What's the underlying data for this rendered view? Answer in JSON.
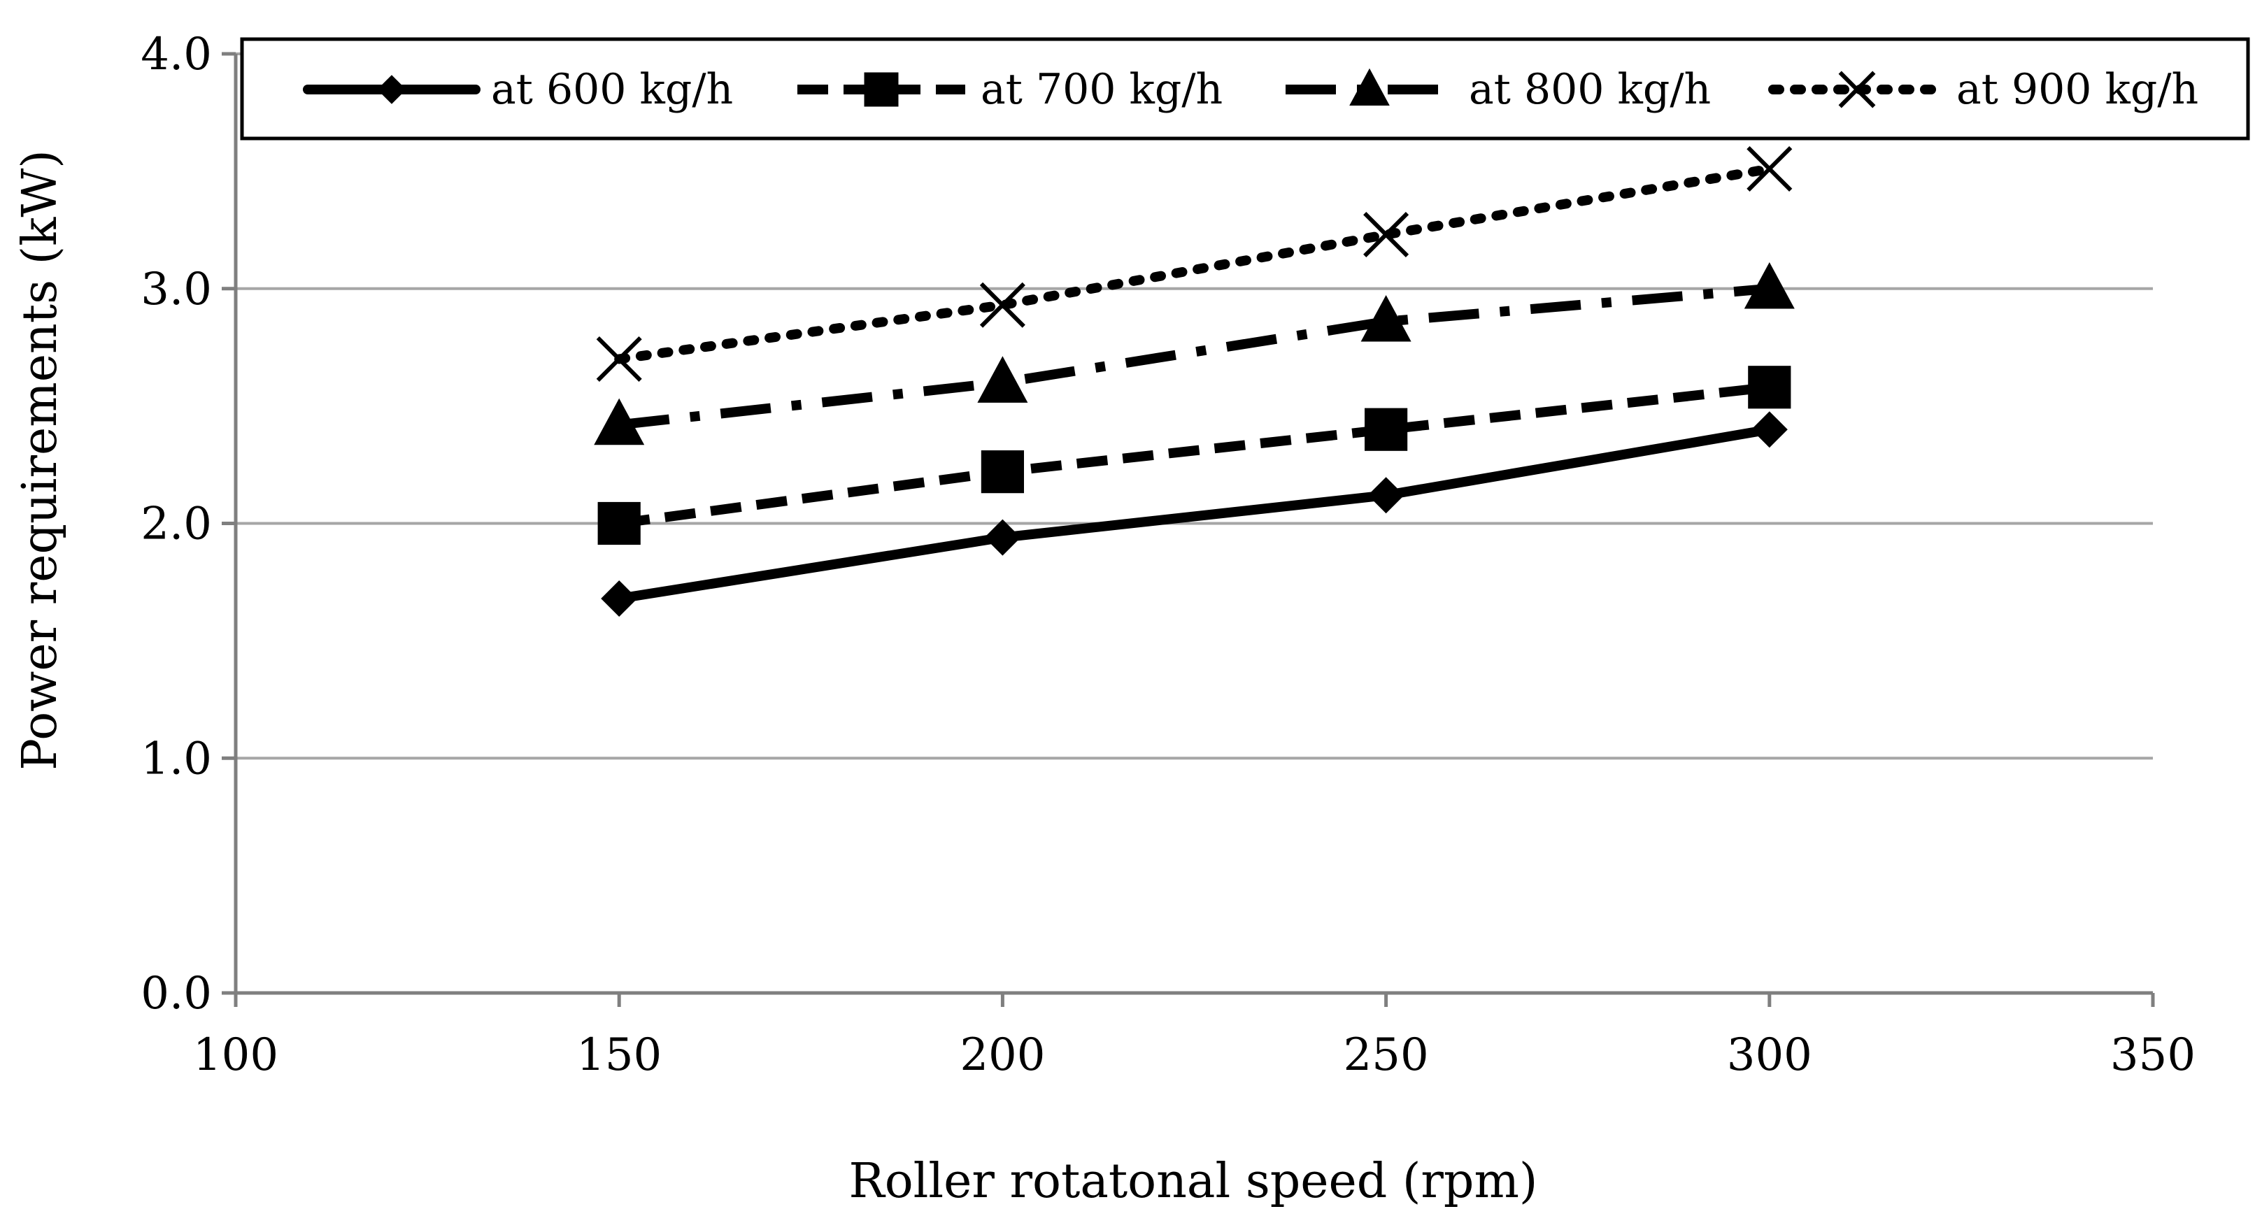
{
  "chart_data": {
    "type": "line",
    "title": "",
    "xlabel": "Roller rotatonal speed (rpm)",
    "ylabel": "Power requirements (kW)",
    "xlim": [
      100,
      350
    ],
    "ylim": [
      0,
      4
    ],
    "x_ticks": [
      100,
      150,
      200,
      250,
      300,
      350
    ],
    "y_ticks": [
      0,
      1,
      2,
      3,
      4
    ],
    "x_tick_labels": [
      "100",
      "150",
      "200",
      "250",
      "300",
      "350"
    ],
    "y_tick_labels": [
      "0.0",
      "1.0",
      "2.0",
      "3.0",
      "4.0"
    ],
    "grid": "horizontal",
    "legend_position": "top",
    "colors": {
      "series": "#000000",
      "grid": "#a6a6a6",
      "axis": "#7f7f7f"
    },
    "x": [
      150,
      200,
      250,
      300
    ],
    "series": [
      {
        "name": "at 600 kg/h",
        "marker": "diamond",
        "line": "solid",
        "values": [
          1.68,
          1.94,
          2.12,
          2.4
        ]
      },
      {
        "name": "at 700 kg/h",
        "marker": "square",
        "line": "dashed",
        "values": [
          2.0,
          2.22,
          2.4,
          2.58
        ]
      },
      {
        "name": "at 800 kg/h",
        "marker": "triangle",
        "line": "dash-dot",
        "values": [
          2.42,
          2.6,
          2.86,
          3.0
        ]
      },
      {
        "name": "at 900 kg/h",
        "marker": "x",
        "line": "dotted",
        "values": [
          2.7,
          2.93,
          3.23,
          3.51
        ]
      }
    ]
  }
}
